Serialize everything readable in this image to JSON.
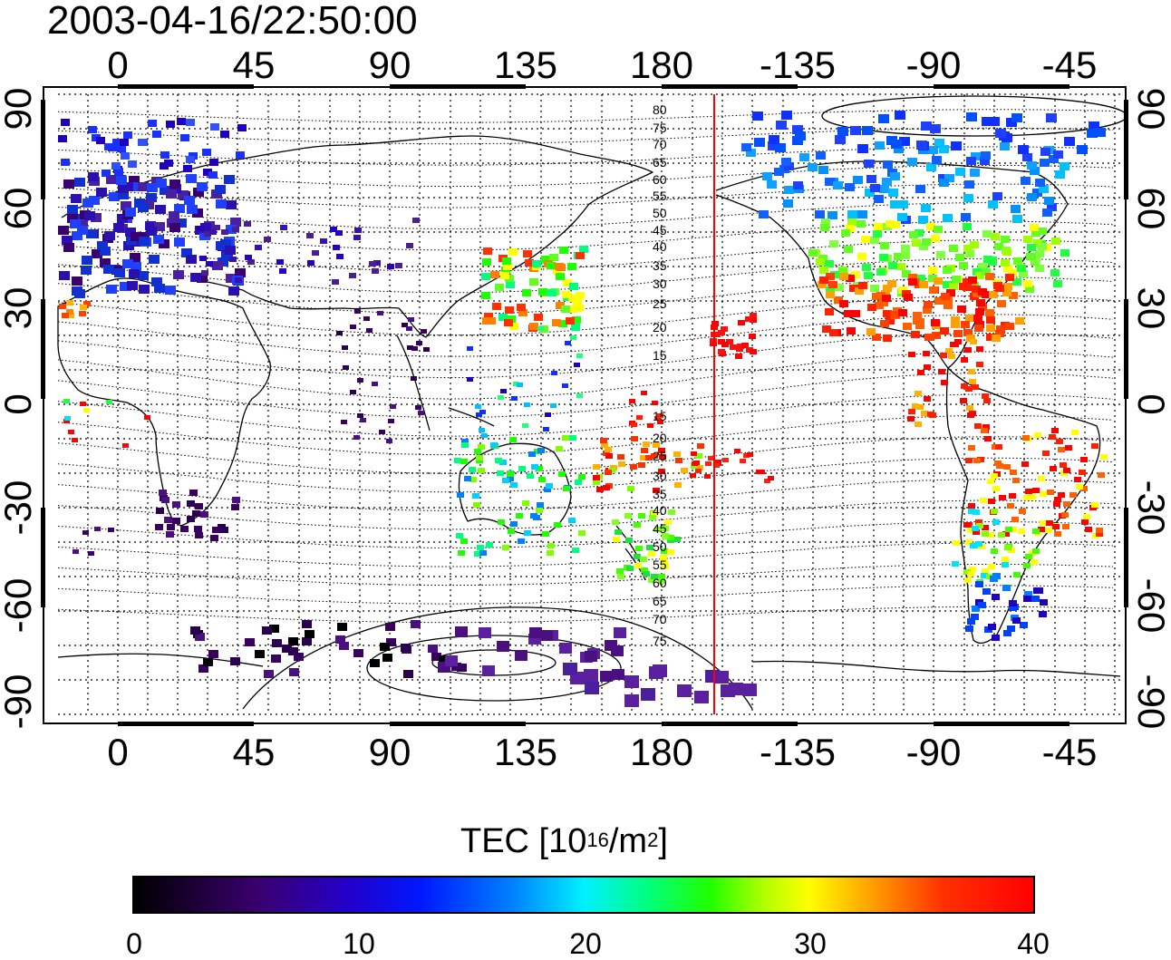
{
  "timestamp": "2003-04-16/22:50:00",
  "map": {
    "lon_tick_labels": [
      "0",
      "45",
      "90",
      "135",
      "180",
      "-135",
      "-90",
      "-45"
    ],
    "lat_tick_labels": [
      "90",
      "60",
      "30",
      "0",
      "-30",
      "-60",
      "-90"
    ],
    "contour_labels": [
      "80",
      "75",
      "70",
      "65",
      "60",
      "55",
      "50",
      "45",
      "40",
      "35",
      "30",
      "25",
      "20",
      "15",
      "15",
      "20",
      "25",
      "30",
      "35",
      "40",
      "45",
      "50",
      "55",
      "60",
      "65",
      "70",
      "75"
    ],
    "terminator_line_color": "#ff0000"
  },
  "colorbar": {
    "title_main": "TEC  [10",
    "title_exp1": "16",
    "title_mid": "/m",
    "title_exp2": "2",
    "title_end": "]",
    "ticks": [
      "0",
      "10",
      "20",
      "30",
      "40"
    ],
    "range": [
      0,
      40
    ],
    "palette": [
      "#000000",
      "#3a0070",
      "#0018ff",
      "#00f0ff",
      "#20ff00",
      "#ffff00",
      "#ff0000"
    ]
  }
}
